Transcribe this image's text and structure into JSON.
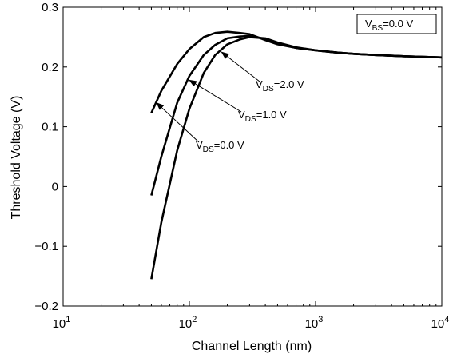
{
  "chart_data": {
    "type": "line",
    "title": "",
    "xlabel": "Channel Length (nm)",
    "ylabel": "Threshold Voltage (V)",
    "xscale": "log",
    "xlim": [
      10,
      10000
    ],
    "ylim": [
      -0.2,
      0.3
    ],
    "grid": false,
    "x_ticks": [
      {
        "value": 10,
        "base": "10",
        "exp": "1"
      },
      {
        "value": 100,
        "base": "10",
        "exp": "2"
      },
      {
        "value": 1000,
        "base": "10",
        "exp": "3"
      },
      {
        "value": 10000,
        "base": "10",
        "exp": "4"
      }
    ],
    "y_ticks": [
      {
        "value": -0.2,
        "label": "−0.2"
      },
      {
        "value": -0.1,
        "label": "−0.1"
      },
      {
        "value": 0,
        "label": "0"
      },
      {
        "value": 0.1,
        "label": "0.1"
      },
      {
        "value": 0.2,
        "label": "0.2"
      },
      {
        "value": 0.3,
        "label": "0.3"
      }
    ],
    "legend_box": {
      "sym": "V",
      "sub": "BS",
      "rest": "=0.0 V",
      "placement": "top-right"
    },
    "series": [
      {
        "label": {
          "sym": "V",
          "sub": "DS",
          "rest": "=0.0 V"
        },
        "arrow_target": [
          55,
          0.14
        ],
        "x": [
          50,
          60,
          80,
          100,
          130,
          160,
          200,
          250,
          300,
          400,
          500,
          700,
          1000,
          1500,
          2000,
          3000,
          5000,
          10000
        ],
        "y": [
          0.123,
          0.16,
          0.205,
          0.23,
          0.25,
          0.257,
          0.259,
          0.257,
          0.255,
          0.245,
          0.238,
          0.232,
          0.228,
          0.224,
          0.222,
          0.22,
          0.218,
          0.216
        ]
      },
      {
        "label": {
          "sym": "V",
          "sub": "DS",
          "rest": "=1.0 V"
        },
        "arrow_target": [
          100,
          0.178
        ],
        "x": [
          50,
          60,
          80,
          100,
          130,
          160,
          200,
          250,
          300,
          400,
          500,
          700,
          1000,
          1500,
          2000,
          3000,
          5000,
          10000
        ],
        "y": [
          -0.015,
          0.05,
          0.14,
          0.185,
          0.22,
          0.237,
          0.248,
          0.251,
          0.252,
          0.247,
          0.24,
          0.232,
          0.228,
          0.224,
          0.222,
          0.22,
          0.218,
          0.216
        ]
      },
      {
        "label": {
          "sym": "V",
          "sub": "DS",
          "rest": "=2.0 V"
        },
        "arrow_target": [
          180,
          0.225
        ],
        "x": [
          50,
          60,
          80,
          100,
          130,
          160,
          200,
          250,
          300,
          400,
          500,
          700,
          1000,
          1500,
          2000,
          3000,
          5000,
          10000
        ],
        "y": [
          -0.155,
          -0.06,
          0.06,
          0.13,
          0.19,
          0.22,
          0.238,
          0.246,
          0.25,
          0.248,
          0.241,
          0.233,
          0.228,
          0.224,
          0.222,
          0.22,
          0.218,
          0.216
        ]
      }
    ]
  }
}
